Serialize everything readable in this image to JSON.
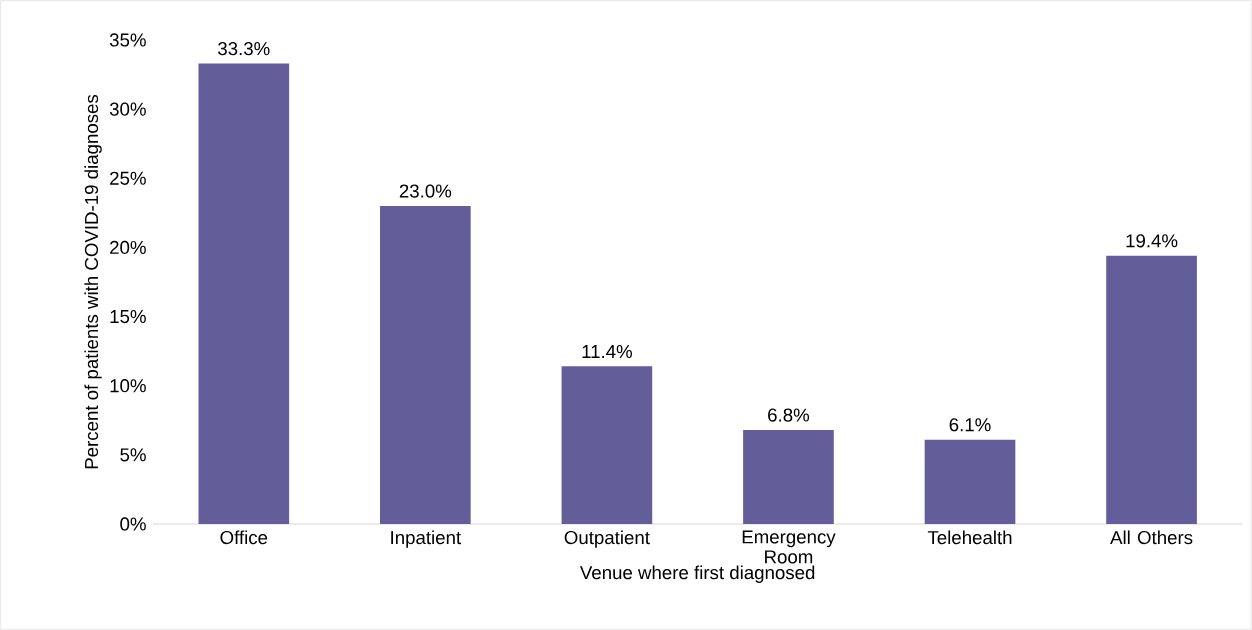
{
  "chart_data": {
    "type": "bar",
    "xlabel": "Venue where first diagnosed",
    "ylabel": "Percent of patients with COVID-19 diagnoses",
    "categories": [
      "Office",
      "Inpatient",
      "Outpatient",
      "Emergency Room",
      "Telehealth",
      "All Others"
    ],
    "values": [
      33.3,
      23.0,
      11.4,
      6.8,
      6.1,
      19.4
    ],
    "value_labels": [
      "33.3%",
      "23.0%",
      "11.4%",
      "6.8%",
      "6.1%",
      "19.4%"
    ],
    "color": "#635d9a",
    "ylim": [
      0,
      35
    ],
    "yticks": [
      {
        "value": 0,
        "label": "0%"
      },
      {
        "value": 5,
        "label": "5%"
      },
      {
        "value": 10,
        "label": "10%"
      },
      {
        "value": 15,
        "label": "15%"
      },
      {
        "value": 20,
        "label": "20%"
      },
      {
        "value": 25,
        "label": "25%"
      },
      {
        "value": 30,
        "label": "30%"
      },
      {
        "value": 35,
        "label": "35%"
      }
    ],
    "grid": false
  }
}
